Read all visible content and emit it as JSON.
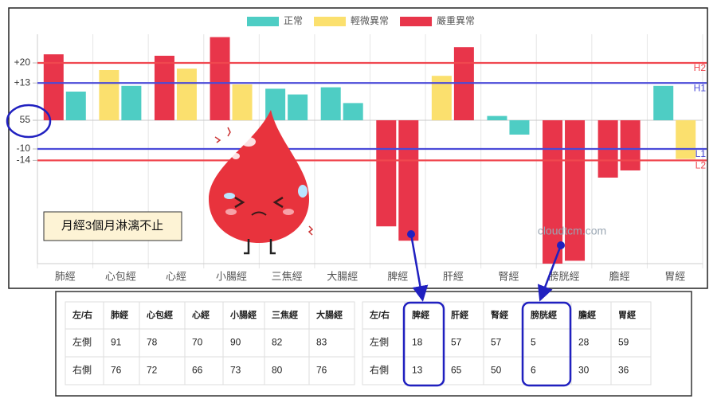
{
  "chart_data": {
    "type": "bar",
    "legend": [
      {
        "name": "正常",
        "color": "#4ecdc4"
      },
      {
        "name": "輕微異常",
        "color": "#fbe06e"
      },
      {
        "name": "嚴重異常",
        "color": "#e8354a"
      }
    ],
    "categories": [
      "肺經",
      "心包經",
      "心經",
      "小腸經",
      "三焦經",
      "大腸經",
      "脾經",
      "肝經",
      "腎經",
      "膀胱經",
      "膽經",
      "胃經"
    ],
    "series": [
      {
        "values": [
          78,
          72.5,
          77.5,
          84,
          66,
          66.5,
          18,
          70.5,
          56.5,
          5,
          35,
          67
        ],
        "colors": [
          "#e8354a",
          "#fbe06e",
          "#e8354a",
          "#e8354a",
          "#4ecdc4",
          "#4ecdc4",
          "#e8354a",
          "#fbe06e",
          "#4ecdc4",
          "#e8354a",
          "#e8354a",
          "#4ecdc4"
        ]
      },
      {
        "values": [
          65,
          67,
          73,
          67.5,
          64,
          61,
          13,
          80.5,
          50,
          6,
          37.5,
          41.5
        ],
        "colors": [
          "#4ecdc4",
          "#4ecdc4",
          "#fbe06e",
          "#fbe06e",
          "#4ecdc4",
          "#4ecdc4",
          "#e8354a",
          "#e8354a",
          "#4ecdc4",
          "#e8354a",
          "#e8354a",
          "#fbe06e"
        ]
      }
    ],
    "baseline": 55,
    "ylim": [
      5,
      85
    ],
    "yticks": [
      {
        "value": 75,
        "label": "+20"
      },
      {
        "value": 68,
        "label": "+13"
      },
      55,
      {
        "value": 45,
        "label": "-10"
      },
      {
        "value": 41,
        "label": "-14"
      }
    ],
    "reference_lines": [
      {
        "value": 75,
        "label": "H2",
        "color": "#f0474f"
      },
      {
        "value": 68,
        "label": "H1",
        "color": "#4a4ad8"
      },
      {
        "value": 45,
        "label": "L1",
        "color": "#4a4ad8"
      },
      {
        "value": 41,
        "label": "L2",
        "color": "#f0474f"
      }
    ],
    "annotation": "月經3個月淋漓不止",
    "watermark": "cloudtcm.com"
  },
  "tables": [
    {
      "header": [
        "左/右",
        "肺經",
        "心包經",
        "心經",
        "小腸經",
        "三焦經",
        "大腸經"
      ],
      "rows": [
        [
          "左側",
          91,
          78,
          70,
          90,
          82,
          83
        ],
        [
          "右側",
          76,
          72,
          66,
          73,
          80,
          76
        ]
      ]
    },
    {
      "header": [
        "左/右",
        "脾經",
        "肝經",
        "腎經",
        "膀胱經",
        "膽經",
        "胃經"
      ],
      "rows": [
        [
          "左側",
          18,
          57,
          57,
          5,
          28,
          59
        ],
        [
          "右側",
          13,
          65,
          50,
          6,
          30,
          36
        ]
      ]
    }
  ]
}
